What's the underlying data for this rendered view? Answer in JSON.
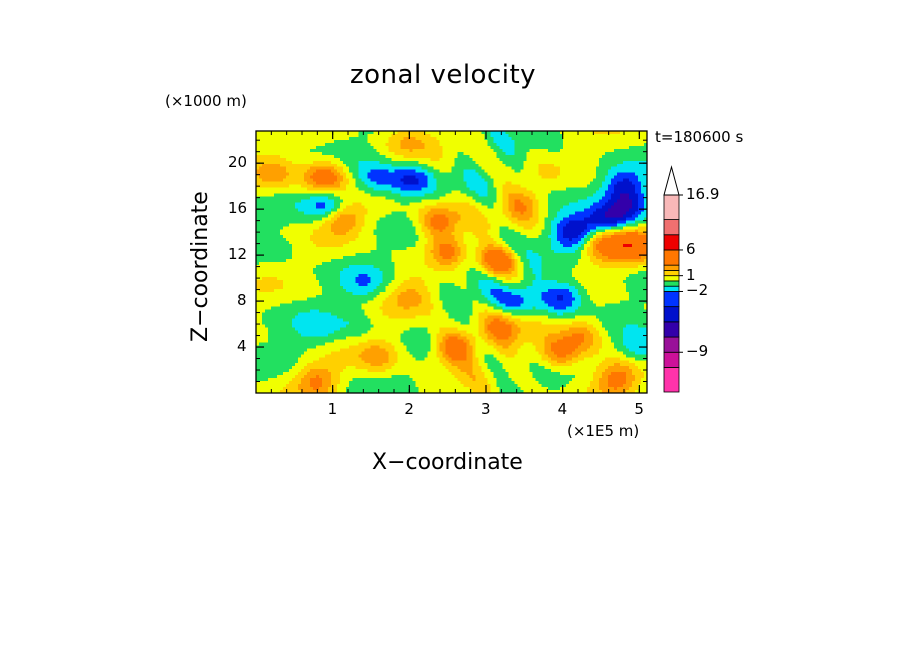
{
  "chart_data": {
    "type": "heatmap",
    "title": "zonal velocity",
    "xlabel": "X−coordinate",
    "ylabel": "Z−coordinate",
    "x_unit": "(×1E5 m)",
    "y_unit": "(×1000 m)",
    "annotation": "t=180600 s",
    "xlim": [
      0,
      5.1
    ],
    "ylim": [
      0,
      22.8
    ],
    "x_ticks": [
      1,
      2,
      3,
      4,
      5
    ],
    "y_ticks": [
      4,
      8,
      12,
      16,
      20
    ],
    "colorbar": {
      "labels": [
        {
          "text": "16.9",
          "value": 16.9
        },
        {
          "text": "6",
          "value": 6
        },
        {
          "text": "1",
          "value": 1
        },
        {
          "text": "−2",
          "value": -2
        },
        {
          "text": "−9",
          "value": -9
        }
      ],
      "levels": [
        {
          "upper": -12,
          "color": "#ff33aa"
        },
        {
          "upper": -9,
          "color": "#cc1199"
        },
        {
          "upper": -6,
          "color": "#991199"
        },
        {
          "upper": -4,
          "color": "#3300aa"
        },
        {
          "upper": -3,
          "color": "#0011cc"
        },
        {
          "upper": -2,
          "color": "#0033ff"
        },
        {
          "upper": -1,
          "color": "#00e5f0"
        },
        {
          "upper": 0,
          "color": "#22e060"
        },
        {
          "upper": 1,
          "color": "#f0ff00"
        },
        {
          "upper": 2,
          "color": "#ffd000"
        },
        {
          "upper": 3,
          "color": "#ffa000"
        },
        {
          "upper": 6,
          "color": "#ff7700"
        },
        {
          "upper": 9,
          "color": "#ee0000"
        },
        {
          "upper": 13,
          "color": "#f07070"
        },
        {
          "upper": 16.9,
          "color": "#f8b8b8"
        }
      ],
      "extend_top_color": "#ffffff"
    },
    "features": [
      {
        "x": 0.95,
        "z": 16.3,
        "value": -3.8
      },
      {
        "x": 1.55,
        "z": 18.6,
        "value": -2.6
      },
      {
        "x": 2.0,
        "z": 18.4,
        "value": -3.5
      },
      {
        "x": 4.15,
        "z": 14.0,
        "value": -3.9
      },
      {
        "x": 4.6,
        "z": 15.0,
        "value": -3.4
      },
      {
        "x": 4.9,
        "z": 16.2,
        "value": -2.8
      },
      {
        "x": 4.8,
        "z": 18.0,
        "value": -3.0
      },
      {
        "x": 4.0,
        "z": 8.4,
        "value": -3.8
      },
      {
        "x": 3.05,
        "z": 10.6,
        "value": -3.2
      },
      {
        "x": 3.45,
        "z": 8.0,
        "value": -2.6
      },
      {
        "x": 2.65,
        "z": 11.4,
        "value": -2.4
      },
      {
        "x": 5.02,
        "z": 4.0,
        "value": -2.6
      },
      {
        "x": 1.4,
        "z": 9.5,
        "value": -1.6
      },
      {
        "x": 0.8,
        "z": 5.5,
        "value": -1.3
      },
      {
        "x": 3.15,
        "z": 13.0,
        "value": -1.2
      },
      {
        "x": 1.3,
        "z": 6.0,
        "value": -1.0
      },
      {
        "x": 3.9,
        "z": 17.5,
        "value": -0.7
      },
      {
        "x": 0.4,
        "z": 12.8,
        "value": -0.6
      },
      {
        "x": 3.65,
        "z": 10.5,
        "value": -0.5
      },
      {
        "x": 0.6,
        "z": 3.0,
        "value": -0.5
      },
      {
        "x": 0.9,
        "z": 18.7,
        "value": 4.6
      },
      {
        "x": 1.1,
        "z": 15.3,
        "value": 3.6
      },
      {
        "x": 2.4,
        "z": 15.0,
        "value": 4.0
      },
      {
        "x": 3.12,
        "z": 11.3,
        "value": 7.2
      },
      {
        "x": 2.55,
        "z": 12.2,
        "value": 3.6
      },
      {
        "x": 4.55,
        "z": 13.0,
        "value": 3.6
      },
      {
        "x": 4.92,
        "z": 12.8,
        "value": 4.3
      },
      {
        "x": 3.25,
        "z": 6.0,
        "value": 3.0
      },
      {
        "x": 2.6,
        "z": 4.0,
        "value": 4.4
      },
      {
        "x": 3.95,
        "z": 3.4,
        "value": 3.2
      },
      {
        "x": 0.8,
        "z": 1.0,
        "value": 3.0
      },
      {
        "x": 4.7,
        "z": 1.2,
        "value": 3.4
      },
      {
        "x": 4.25,
        "z": 5.0,
        "value": 3.0
      },
      {
        "x": 1.6,
        "z": 3.2,
        "value": 2.4
      },
      {
        "x": 0.25,
        "z": 19.0,
        "value": 2.0
      },
      {
        "x": 1.95,
        "z": 21.8,
        "value": 1.6
      },
      {
        "x": 3.5,
        "z": 16.5,
        "value": 2.2
      },
      {
        "x": 2.0,
        "z": 8.5,
        "value": 1.8
      }
    ]
  }
}
